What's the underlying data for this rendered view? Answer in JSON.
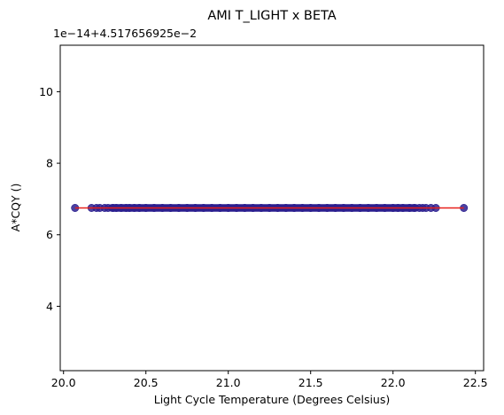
{
  "chart_data": {
    "type": "scatter",
    "title": "AMI T_LIGHT x BETA",
    "xlabel": "Light Cycle Temperature (Degrees Celsius)",
    "ylabel": "A*CQY ()",
    "y_offset_text": "1e−14+4.517656925e−2",
    "xlim": [
      19.98,
      22.55
    ],
    "ylim": [
      2.2,
      11.3
    ],
    "x_ticks": [
      20.0,
      20.5,
      21.0,
      21.5,
      22.0,
      22.5
    ],
    "x_tick_labels": [
      "20.0",
      "20.5",
      "21.0",
      "21.5",
      "22.0",
      "22.5"
    ],
    "y_ticks": [
      4,
      6,
      8,
      10
    ],
    "y_tick_labels": [
      "4",
      "6",
      "8",
      "10"
    ],
    "grid": false,
    "series": [
      {
        "marker_color": "#2b1f8f",
        "y": 6.75,
        "x_min": 20.07,
        "x_max": 22.43,
        "x": [
          20.07,
          20.17,
          20.2,
          20.22,
          20.25,
          20.27,
          20.3,
          20.32,
          20.35,
          20.38,
          20.4,
          20.43,
          20.46,
          20.5,
          20.55,
          20.6,
          20.65,
          20.7,
          20.75,
          20.8,
          20.85,
          20.9,
          20.95,
          21.0,
          21.05,
          21.1,
          21.15,
          21.2,
          21.25,
          21.3,
          21.35,
          21.4,
          21.45,
          21.5,
          21.55,
          21.6,
          21.65,
          21.7,
          21.75,
          21.8,
          21.85,
          21.9,
          21.95,
          22.0,
          22.03,
          22.06,
          22.1,
          22.13,
          22.16,
          22.18,
          22.2,
          22.23,
          22.26,
          22.43
        ]
      }
    ],
    "fit_line": {
      "color": "#e8201a",
      "x": [
        20.07,
        22.43
      ],
      "y": [
        6.75,
        6.75
      ]
    }
  }
}
